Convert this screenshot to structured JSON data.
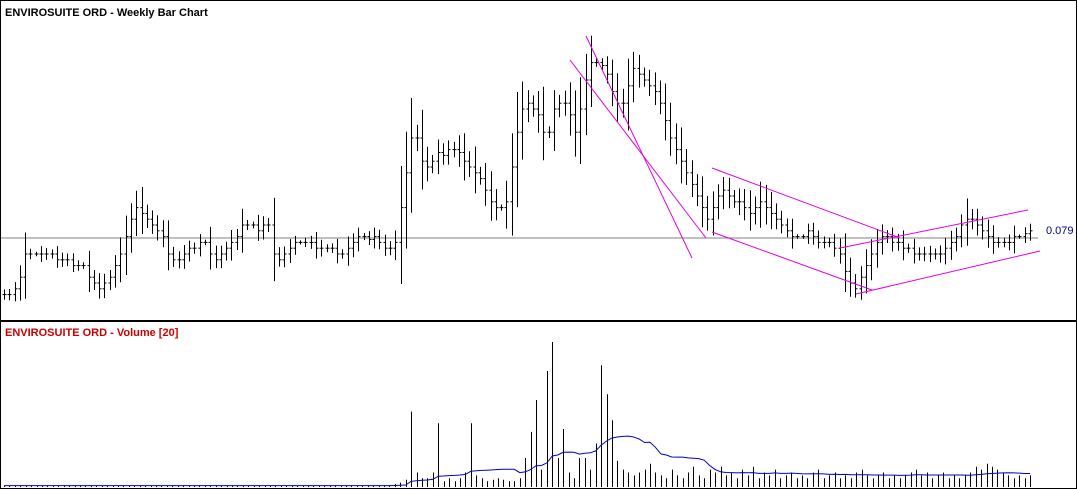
{
  "price_panel": {
    "title": "ENVIROSUITE ORD - Weekly Bar Chart",
    "title_color": "#000000",
    "last_price_label": "0.079",
    "last_price_color": "#000080"
  },
  "volume_panel": {
    "title": "ENVIROSUITE ORD - Volume [20]",
    "title_color": "#cc0000"
  },
  "colors": {
    "bars": "#000000",
    "trendlines": "#e000e0",
    "volume_bars": "#000000",
    "volume_average": "#0000c8",
    "last_price_line": "#808080"
  },
  "chart_data": [
    {
      "type": "line",
      "title": "ENVIROSUITE ORD - Weekly Bar Chart",
      "series_kind": "OHLC bars",
      "last_value": 0.079,
      "grid": false,
      "legend": "none",
      "shapes": [
        "two converging trendlines on decline",
        "falling channel",
        "rising channel"
      ],
      "series": [
        {
          "name": "ENVIROSUITE ORD",
          "shape_fraction": [
            0.06,
            0.06,
            0.08,
            0.12,
            0.2,
            0.2,
            0.2,
            0.2,
            0.2,
            0.2,
            0.18,
            0.18,
            0.18,
            0.16,
            0.16,
            0.16,
            0.12,
            0.1,
            0.08,
            0.1,
            0.12,
            0.16,
            0.2,
            0.26,
            0.32,
            0.36,
            0.34,
            0.32,
            0.3,
            0.28,
            0.26,
            0.2,
            0.18,
            0.18,
            0.2,
            0.22,
            0.22,
            0.24,
            0.24,
            0.2,
            0.18,
            0.2,
            0.22,
            0.24,
            0.26,
            0.3,
            0.3,
            0.3,
            0.28,
            0.3,
            0.3,
            0.2,
            0.18,
            0.2,
            0.22,
            0.24,
            0.24,
            0.24,
            0.24,
            0.22,
            0.22,
            0.22,
            0.22,
            0.2,
            0.2,
            0.22,
            0.24,
            0.26,
            0.26,
            0.25,
            0.26,
            0.24,
            0.22,
            0.22,
            0.24,
            0.36,
            0.48,
            0.6,
            0.6,
            0.52,
            0.5,
            0.52,
            0.55,
            0.54,
            0.56,
            0.56,
            0.55,
            0.52,
            0.5,
            0.48,
            0.46,
            0.42,
            0.38,
            0.36,
            0.36,
            0.38,
            0.5,
            0.62,
            0.7,
            0.72,
            0.7,
            0.68,
            0.62,
            0.62,
            0.7,
            0.72,
            0.72,
            0.68,
            0.62,
            0.7,
            0.8,
            0.86,
            0.86,
            0.85,
            0.82,
            0.76,
            0.72,
            0.72,
            0.78,
            0.84,
            0.82,
            0.8,
            0.78,
            0.76,
            0.72,
            0.66,
            0.6,
            0.56,
            0.52,
            0.48,
            0.44,
            0.4,
            0.36,
            0.32,
            0.36,
            0.4,
            0.42,
            0.4,
            0.38,
            0.38,
            0.36,
            0.34,
            0.36,
            0.38,
            0.36,
            0.34,
            0.32,
            0.3,
            0.28,
            0.26,
            0.26,
            0.26,
            0.28,
            0.26,
            0.24,
            0.24,
            0.24,
            0.22,
            0.2,
            0.14,
            0.1,
            0.08,
            0.12,
            0.16,
            0.2,
            0.24,
            0.26,
            0.26,
            0.24,
            0.24,
            0.22,
            0.22,
            0.2,
            0.2,
            0.2,
            0.2,
            0.2,
            0.2,
            0.22,
            0.24,
            0.26,
            0.3,
            0.32,
            0.32,
            0.3,
            0.28,
            0.26,
            0.24,
            0.24,
            0.24,
            0.24,
            0.26,
            0.26,
            0.27,
            0.28
          ]
        }
      ]
    },
    {
      "type": "bar",
      "title": "ENVIROSUITE ORD - Volume [20]",
      "moving_average_period": 20,
      "grid": false,
      "legend": "none",
      "series": [
        {
          "name": "Volume",
          "shape_fraction": [
            0.01,
            0.01,
            0.01,
            0.01,
            0.01,
            0.01,
            0.01,
            0.01,
            0.01,
            0.01,
            0.01,
            0.01,
            0.01,
            0.01,
            0.01,
            0.01,
            0.01,
            0.01,
            0.01,
            0.01,
            0.01,
            0.01,
            0.01,
            0.01,
            0.01,
            0.01,
            0.01,
            0.01,
            0.01,
            0.01,
            0.01,
            0.01,
            0.01,
            0.01,
            0.01,
            0.01,
            0.01,
            0.01,
            0.01,
            0.01,
            0.01,
            0.01,
            0.01,
            0.01,
            0.01,
            0.01,
            0.01,
            0.01,
            0.01,
            0.01,
            0.01,
            0.01,
            0.01,
            0.01,
            0.01,
            0.01,
            0.01,
            0.01,
            0.01,
            0.01,
            0.01,
            0.01,
            0.01,
            0.01,
            0.01,
            0.01,
            0.01,
            0.01,
            0.01,
            0.01,
            0.01,
            0.01,
            0.02,
            0.03,
            0.05,
            0.52,
            0.1,
            0.06,
            0.06,
            0.1,
            0.44,
            0.04,
            0.06,
            0.04,
            0.06,
            0.1,
            0.44,
            0.08,
            0.06,
            0.04,
            0.05,
            0.06,
            0.05,
            0.04,
            0.04,
            0.06,
            0.2,
            0.38,
            0.6,
            0.12,
            0.8,
            1.0,
            0.2,
            0.4,
            0.1,
            0.06,
            0.2,
            0.2,
            0.12,
            0.3,
            0.84,
            0.64,
            0.46,
            0.18,
            0.12,
            0.1,
            0.08,
            0.1,
            0.12,
            0.16,
            0.1,
            0.08,
            0.06,
            0.12,
            0.08,
            0.06,
            0.1,
            0.14,
            0.08,
            0.06,
            0.12,
            0.1,
            0.14,
            0.08,
            0.1,
            0.06,
            0.12,
            0.08,
            0.14,
            0.06,
            0.1,
            0.08,
            0.12,
            0.06,
            0.08,
            0.1,
            0.06,
            0.08,
            0.06,
            0.1,
            0.12,
            0.06,
            0.08,
            0.1,
            0.06,
            0.08,
            0.06,
            0.1,
            0.12,
            0.08,
            0.06,
            0.08,
            0.1,
            0.06,
            0.08,
            0.06,
            0.08,
            0.1,
            0.12,
            0.08,
            0.1,
            0.06,
            0.08,
            0.1,
            0.06,
            0.08,
            0.06,
            0.08,
            0.1,
            0.14,
            0.12,
            0.16,
            0.14,
            0.12,
            0.1,
            0.08,
            0.06,
            0.08,
            0.06,
            0.08
          ]
        }
      ]
    }
  ]
}
